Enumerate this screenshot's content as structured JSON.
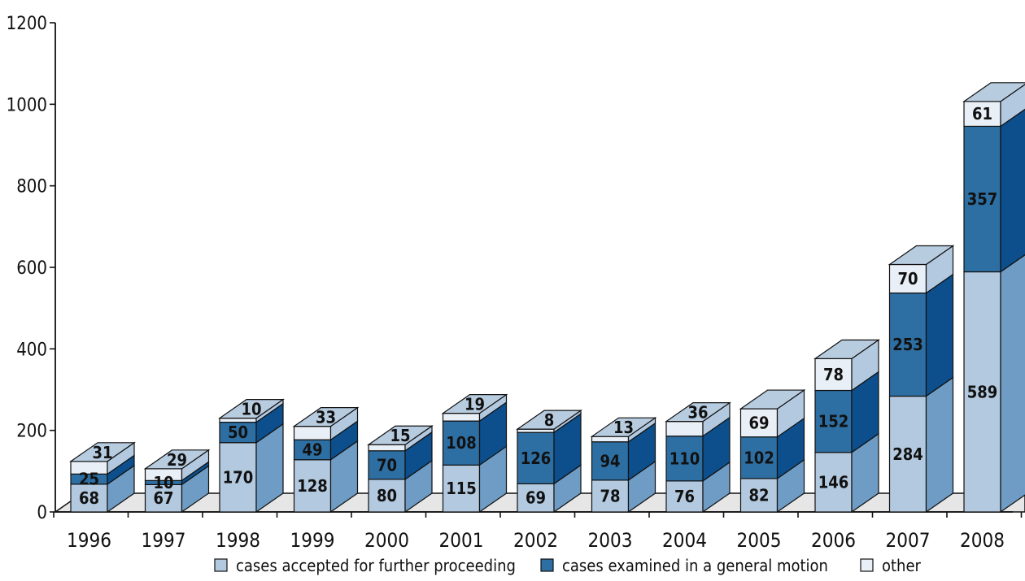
{
  "chart_data": {
    "type": "bar",
    "stacked": true,
    "style": "3d",
    "categories": [
      "1996",
      "1997",
      "1998",
      "1999",
      "2000",
      "2001",
      "2002",
      "2003",
      "2004",
      "2005",
      "2006",
      "2007",
      "2008"
    ],
    "series": [
      {
        "name": "cases accepted for further proceeding",
        "color": "#b3c9df",
        "values": [
          68,
          67,
          170,
          128,
          80,
          115,
          69,
          78,
          76,
          82,
          146,
          284,
          589
        ]
      },
      {
        "name": "cases examined in a general motion",
        "color": "#2e6fa3",
        "values": [
          25,
          10,
          50,
          49,
          70,
          108,
          126,
          94,
          110,
          102,
          152,
          253,
          357
        ]
      },
      {
        "name": "other",
        "color": "#e9eff6",
        "values": [
          31,
          29,
          10,
          33,
          15,
          19,
          8,
          13,
          36,
          69,
          78,
          70,
          61
        ]
      }
    ],
    "ylim": [
      0,
      1200
    ],
    "yticks": [
      0,
      200,
      400,
      600,
      800,
      1000,
      1200
    ],
    "grid": false,
    "legend": "bottom"
  }
}
